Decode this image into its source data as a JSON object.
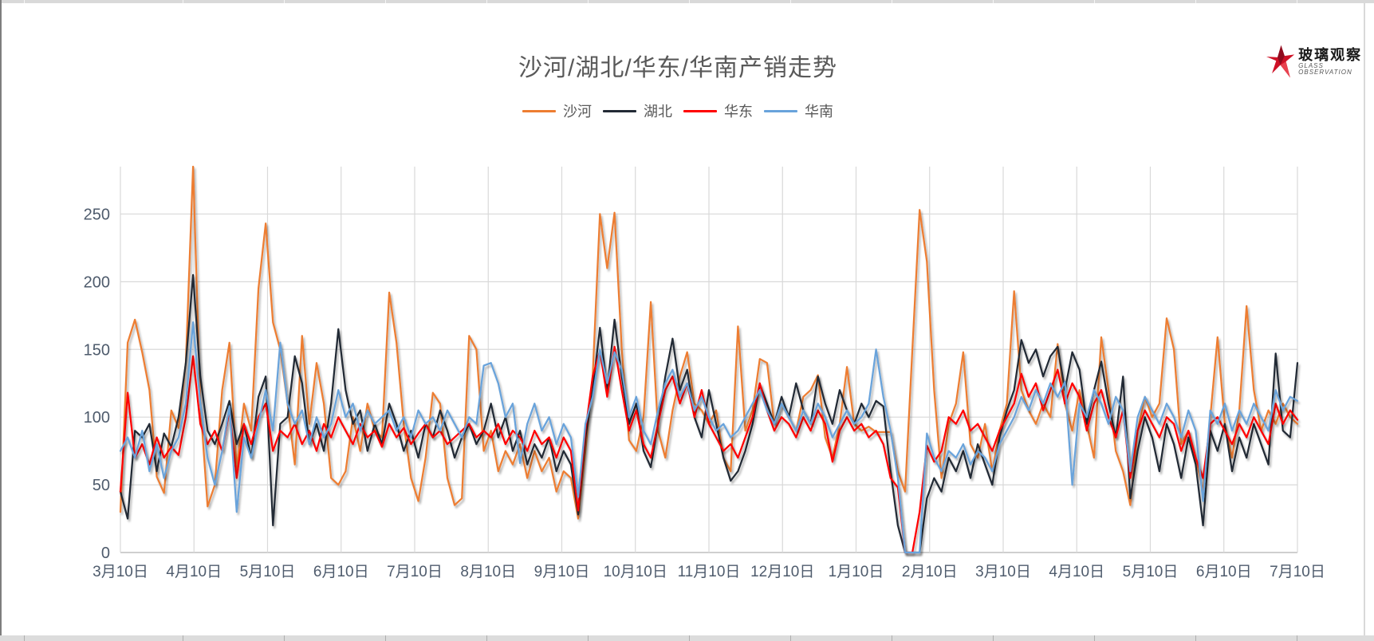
{
  "logo": {
    "name": "玻璃观察",
    "subtitle": "GLASS OBSERVATION",
    "color": "#CE1126"
  },
  "chart_data": {
    "type": "line",
    "title": "沙河/湖北/华东/华南产销走势",
    "xlabel": "",
    "ylabel": "",
    "ylim": [
      0,
      285
    ],
    "yticks": [
      0,
      50,
      100,
      150,
      200,
      250
    ],
    "x_tick_labels": [
      "3月10日",
      "4月10日",
      "5月10日",
      "6月10日",
      "7月10日",
      "8月10日",
      "9月10日",
      "10月10日",
      "11月10日",
      "12月10日",
      "1月10日",
      "2月10日",
      "3月10日",
      "4月10日",
      "5月10日",
      "6月10日",
      "7月10日"
    ],
    "grid": true,
    "legend_position": "top",
    "gridline_color": "#d9d9d9",
    "axis_line_color": "#bfbfbf",
    "tick_label_color": "#4e5b6c",
    "sample_interval_days": 3,
    "series": [
      {
        "key": "shahe",
        "name": "沙河",
        "color": "#ED7D31",
        "values": [
          30,
          155,
          172,
          148,
          120,
          56,
          44,
          105,
          92,
          140,
          285,
          110,
          34,
          50,
          120,
          155,
          62,
          110,
          90,
          195,
          243,
          170,
          150,
          110,
          65,
          160,
          95,
          140,
          110,
          55,
          50,
          60,
          100,
          75,
          110,
          90,
          85,
          192,
          155,
          95,
          55,
          38,
          70,
          118,
          110,
          55,
          35,
          40,
          160,
          150,
          75,
          90,
          60,
          75,
          65,
          80,
          55,
          75,
          60,
          70,
          45,
          60,
          55,
          25,
          75,
          130,
          250,
          210,
          251,
          150,
          83,
          75,
          100,
          185,
          90,
          70,
          105,
          130,
          148,
          110,
          105,
          95,
          105,
          70,
          60,
          167,
          90,
          105,
          143,
          140,
          95,
          110,
          100,
          90,
          115,
          120,
          131,
          85,
          70,
          95,
          137,
          95,
          90,
          93,
          89,
          89,
          89,
          60,
          45,
          150,
          253,
          215,
          120,
          55,
          95,
          110,
          148,
          80,
          70,
          95,
          60,
          90,
          110,
          193,
          120,
          105,
          95,
          110,
          100,
          154,
          110,
          90,
          120,
          95,
          70,
          159,
          120,
          75,
          60,
          35,
          90,
          115,
          100,
          110,
          173,
          150,
          80,
          90,
          70,
          45,
          100,
          159,
          95,
          70,
          105,
          182,
          120,
          90,
          105,
          95,
          110,
          100,
          95
        ]
      },
      {
        "key": "hubei",
        "name": "湖北",
        "color": "#222A35",
        "values": [
          45,
          25,
          90,
          85,
          95,
          60,
          88,
          78,
          100,
          140,
          205,
          130,
          90,
          80,
          95,
          112,
          80,
          95,
          70,
          115,
          130,
          20,
          95,
          100,
          145,
          125,
          80,
          95,
          75,
          110,
          165,
          120,
          95,
          105,
          75,
          95,
          80,
          110,
          95,
          75,
          90,
          70,
          95,
          85,
          105,
          90,
          70,
          85,
          95,
          80,
          90,
          110,
          85,
          100,
          75,
          90,
          65,
          80,
          70,
          85,
          60,
          75,
          65,
          28,
          85,
          120,
          166,
          120,
          172,
          130,
          95,
          110,
          75,
          63,
          95,
          130,
          158,
          120,
          135,
          100,
          85,
          120,
          95,
          70,
          53,
          60,
          75,
          95,
          124,
          110,
          95,
          115,
          100,
          125,
          105,
          95,
          130,
          110,
          95,
          120,
          105,
          95,
          110,
          100,
          112,
          108,
          60,
          20,
          0,
          0,
          0,
          40,
          55,
          45,
          70,
          60,
          75,
          55,
          80,
          65,
          50,
          85,
          105,
          120,
          157,
          140,
          150,
          130,
          145,
          152,
          120,
          148,
          135,
          95,
          120,
          141,
          110,
          85,
          130,
          40,
          75,
          100,
          85,
          60,
          95,
          80,
          55,
          85,
          65,
          20,
          90,
          75,
          95,
          60,
          85,
          70,
          95,
          80,
          65,
          147,
          90,
          85,
          140
        ]
      },
      {
        "key": "huadong",
        "name": "华东",
        "color": "#FF0000",
        "values": [
          45,
          118,
          70,
          80,
          65,
          85,
          70,
          78,
          72,
          100,
          145,
          95,
          80,
          90,
          75,
          105,
          55,
          95,
          80,
          100,
          110,
          75,
          90,
          85,
          95,
          80,
          90,
          75,
          95,
          85,
          100,
          90,
          80,
          95,
          85,
          90,
          78,
          95,
          85,
          92,
          80,
          88,
          95,
          85,
          90,
          80,
          85,
          90,
          95,
          85,
          90,
          85,
          95,
          80,
          90,
          85,
          75,
          90,
          80,
          85,
          70,
          85,
          75,
          31,
          90,
          130,
          149,
          115,
          152,
          120,
          90,
          105,
          80,
          70,
          95,
          120,
          130,
          110,
          125,
          100,
          120,
          95,
          85,
          75,
          80,
          70,
          85,
          100,
          125,
          105,
          90,
          100,
          95,
          85,
          100,
          90,
          105,
          95,
          67,
          90,
          100,
          90,
          95,
          85,
          90,
          80,
          55,
          48,
          0,
          0,
          30,
          79,
          67,
          75,
          100,
          95,
          105,
          90,
          95,
          85,
          75,
          90,
          100,
          110,
          132,
          115,
          125,
          105,
          120,
          135,
          110,
          125,
          115,
          90,
          110,
          120,
          100,
          85,
          105,
          55,
          90,
          105,
          95,
          85,
          100,
          95,
          75,
          90,
          70,
          55,
          95,
          100,
          90,
          80,
          95,
          85,
          100,
          90,
          80,
          110,
          95,
          105,
          98
        ]
      },
      {
        "key": "huanan",
        "name": "华南",
        "color": "#69A3DB",
        "values": [
          75,
          85,
          70,
          90,
          60,
          80,
          55,
          75,
          85,
          110,
          170,
          110,
          70,
          50,
          75,
          108,
          30,
          85,
          70,
          95,
          120,
          90,
          155,
          110,
          95,
          105,
          80,
          100,
          85,
          95,
          120,
          100,
          110,
          90,
          105,
          95,
          100,
          105,
          90,
          100,
          85,
          105,
          95,
          100,
          90,
          105,
          95,
          85,
          100,
          95,
          138,
          140,
          125,
          100,
          110,
          66,
          95,
          110,
          90,
          100,
          80,
          95,
          85,
          41,
          95,
          115,
          150,
          125,
          148,
          135,
          100,
          115,
          90,
          80,
          105,
          125,
          135,
          115,
          125,
          105,
          115,
          100,
          90,
          95,
          85,
          90,
          100,
          110,
          120,
          105,
          95,
          110,
          100,
          90,
          105,
          95,
          110,
          100,
          85,
          95,
          105,
          95,
          100,
          110,
          150,
          115,
          90,
          55,
          0,
          0,
          0,
          88,
          70,
          60,
          75,
          70,
          80,
          65,
          75,
          70,
          60,
          80,
          90,
          100,
          115,
          105,
          120,
          110,
          125,
          115,
          126,
          50,
          110,
          100,
          120,
          110,
          95,
          115,
          105,
          60,
          100,
          115,
          105,
          95,
          110,
          100,
          85,
          105,
          90,
          38,
          105,
          95,
          110,
          90,
          105,
          95,
          110,
          100,
          90,
          120,
          105,
          115,
          112
        ]
      }
    ]
  }
}
